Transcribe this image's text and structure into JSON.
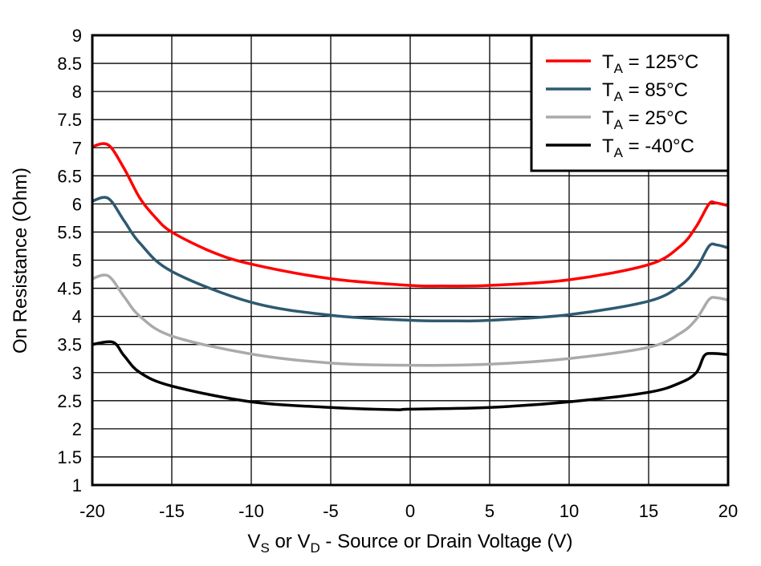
{
  "chart_data": {
    "type": "line",
    "title": "",
    "xlabel": {
      "parts": [
        "V",
        "S",
        " or V",
        "D",
        " - Source or Drain Voltage (V)"
      ]
    },
    "ylabel": "On Resistance (Ohm)",
    "xlim": [
      -20,
      20
    ],
    "ylim": [
      1,
      9
    ],
    "xticks": [
      -20,
      -15,
      -10,
      -5,
      0,
      5,
      10,
      15,
      20
    ],
    "yticks": [
      1,
      1.5,
      2,
      2.5,
      3,
      3.5,
      4,
      4.5,
      5,
      5.5,
      6,
      6.5,
      7,
      7.5,
      8,
      8.5,
      9
    ],
    "grid": true,
    "legend_position": "top-right",
    "series": [
      {
        "name": "T_A = 125°C",
        "label_main": "T",
        "label_sub": "A",
        "label_rest": " = 125°C",
        "color": "#ff0000",
        "x": [
          -20,
          -19,
          -18,
          -17,
          -16,
          -15,
          -12.5,
          -10,
          -5,
          0,
          2,
          5,
          10,
          15,
          17,
          18,
          18.8,
          19.2,
          20
        ],
        "y": [
          7.02,
          7.05,
          6.63,
          6.1,
          5.75,
          5.5,
          5.15,
          4.93,
          4.67,
          4.55,
          4.54,
          4.55,
          4.65,
          4.92,
          5.25,
          5.6,
          6.0,
          6.02,
          5.97
        ]
      },
      {
        "name": "T_A = 85°C",
        "label_main": "T",
        "label_sub": "A",
        "label_rest": " = 85°C",
        "color": "#2e5a71",
        "x": [
          -20,
          -19,
          -18,
          -17,
          -15,
          -10,
          -5,
          0,
          3,
          5,
          10,
          15,
          17,
          18,
          18.8,
          19.3,
          20
        ],
        "y": [
          6.05,
          6.1,
          5.7,
          5.3,
          4.8,
          4.25,
          4.02,
          3.93,
          3.92,
          3.93,
          4.03,
          4.27,
          4.55,
          4.85,
          5.25,
          5.27,
          5.22
        ]
      },
      {
        "name": "T_A = 25°C",
        "label_main": "T",
        "label_sub": "A",
        "label_rest": " = 25°C",
        "color": "#aaaaaa",
        "x": [
          -20,
          -19,
          -18,
          -17,
          -15,
          -10,
          -5,
          0,
          5,
          10,
          15,
          17,
          18,
          18.8,
          19.3,
          20
        ],
        "y": [
          4.67,
          4.72,
          4.35,
          4.0,
          3.65,
          3.33,
          3.17,
          3.13,
          3.15,
          3.25,
          3.45,
          3.7,
          3.95,
          4.3,
          4.33,
          4.29
        ]
      },
      {
        "name": "T_A = -40°C",
        "label_main": "T",
        "label_sub": "A",
        "label_rest": " = -40°C",
        "color": "#000000",
        "x": [
          -20,
          -18.7,
          -18,
          -17,
          -15,
          -10,
          -5,
          -1,
          0,
          5,
          10,
          15,
          17,
          18,
          18.5,
          19,
          20
        ],
        "y": [
          3.5,
          3.54,
          3.3,
          3.0,
          2.76,
          2.48,
          2.38,
          2.34,
          2.35,
          2.38,
          2.48,
          2.65,
          2.82,
          3.0,
          3.3,
          3.34,
          3.32
        ]
      }
    ]
  }
}
